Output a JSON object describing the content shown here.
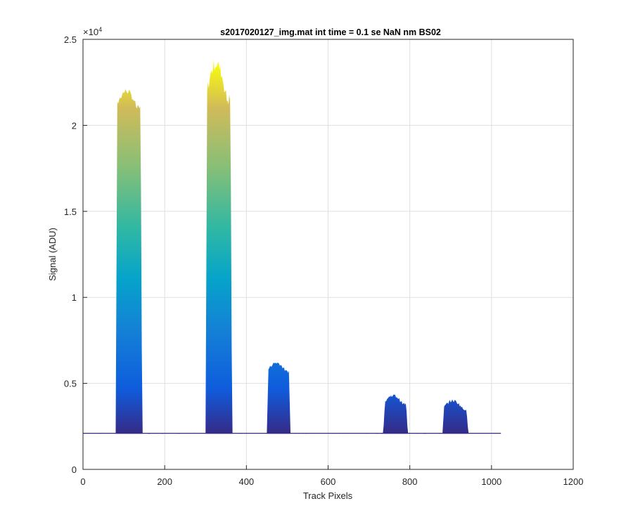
{
  "chart_data": {
    "type": "area",
    "title": "s2017020127_img.mat int time = 0.1 se  NaN nm BS02",
    "xlabel": "Track Pixels",
    "ylabel": "Signal (ADU)",
    "xlim": [
      0,
      1200
    ],
    "ylim": [
      0,
      25000
    ],
    "y_exponent_label": "×10",
    "y_exponent_power": "4",
    "xticks": [
      0,
      200,
      400,
      600,
      800,
      1000,
      1200
    ],
    "xtick_labels": [
      "0",
      "200",
      "400",
      "600",
      "800",
      "1000",
      "1200"
    ],
    "yticks": [
      0,
      5000,
      10000,
      15000,
      20000,
      25000
    ],
    "ytick_labels": [
      "0",
      "0.5",
      "1",
      "1.5",
      "2",
      "2.5"
    ],
    "grid": true,
    "colormap": "parula",
    "colors": {
      "low": "#352a87",
      "mid_low": "#0f5cdd",
      "mid": "#1481d6",
      "mid_high": "#06a4ca",
      "teal": "#2eb7a4",
      "green": "#87bf77",
      "orange": "#d1bb59",
      "high": "#f9fb0e"
    },
    "baseline": 2100,
    "x_extent": [
      0,
      1023
    ],
    "peaks": [
      {
        "x_start": 80,
        "x_end": 145,
        "max": 22000,
        "shoulder": 21000
      },
      {
        "x_start": 300,
        "x_end": 365,
        "max": 23600,
        "shoulder": 21500
      },
      {
        "x_start": 450,
        "x_end": 508,
        "max": 6200,
        "shoulder": 5700
      },
      {
        "x_start": 735,
        "x_end": 795,
        "max": 4300,
        "shoulder": 3800
      },
      {
        "x_start": 880,
        "x_end": 943,
        "max": 4000,
        "shoulder": 3500
      }
    ]
  }
}
